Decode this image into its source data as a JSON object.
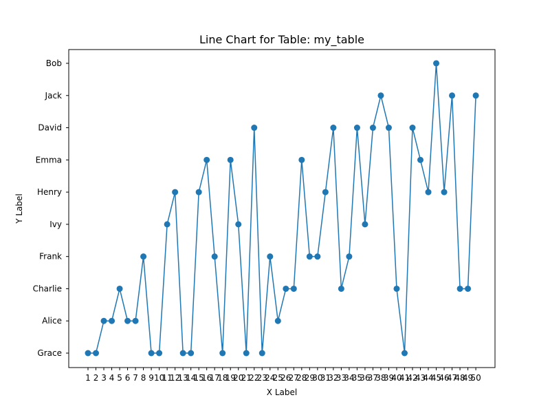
{
  "chart_data": {
    "type": "line",
    "title": "Line Chart for Table: my_table",
    "xlabel": "X Label",
    "ylabel": "Y Label",
    "x": [
      1,
      2,
      3,
      4,
      5,
      6,
      7,
      8,
      9,
      10,
      11,
      12,
      13,
      14,
      15,
      16,
      17,
      18,
      19,
      20,
      21,
      22,
      23,
      24,
      25,
      26,
      27,
      28,
      29,
      30,
      31,
      32,
      33,
      34,
      35,
      36,
      37,
      38,
      39,
      40,
      41,
      42,
      43,
      44,
      45,
      46,
      47,
      48,
      49,
      50
    ],
    "y_categories": [
      "Grace",
      "Alice",
      "Charlie",
      "Frank",
      "Ivy",
      "Henry",
      "Emma",
      "David",
      "Jack",
      "Bob"
    ],
    "series": [
      {
        "values": [
          "Grace",
          "Grace",
          "Alice",
          "Alice",
          "Charlie",
          "Alice",
          "Alice",
          "Frank",
          "Grace",
          "Grace",
          "Ivy",
          "Henry",
          "Grace",
          "Grace",
          "Henry",
          "Emma",
          "Frank",
          "Grace",
          "Emma",
          "Ivy",
          "Grace",
          "David",
          "Grace",
          "Frank",
          "Alice",
          "Charlie",
          "Charlie",
          "Emma",
          "Frank",
          "Frank",
          "Henry",
          "David",
          "Charlie",
          "Frank",
          "David",
          "Ivy",
          "David",
          "Jack",
          "David",
          "Charlie",
          "Grace",
          "David",
          "Emma",
          "Henry",
          "Bob",
          "Henry",
          "Jack",
          "Charlie",
          "Charlie",
          "Jack"
        ]
      }
    ],
    "color": "#1f77b4",
    "grid": false,
    "legend": "none"
  }
}
